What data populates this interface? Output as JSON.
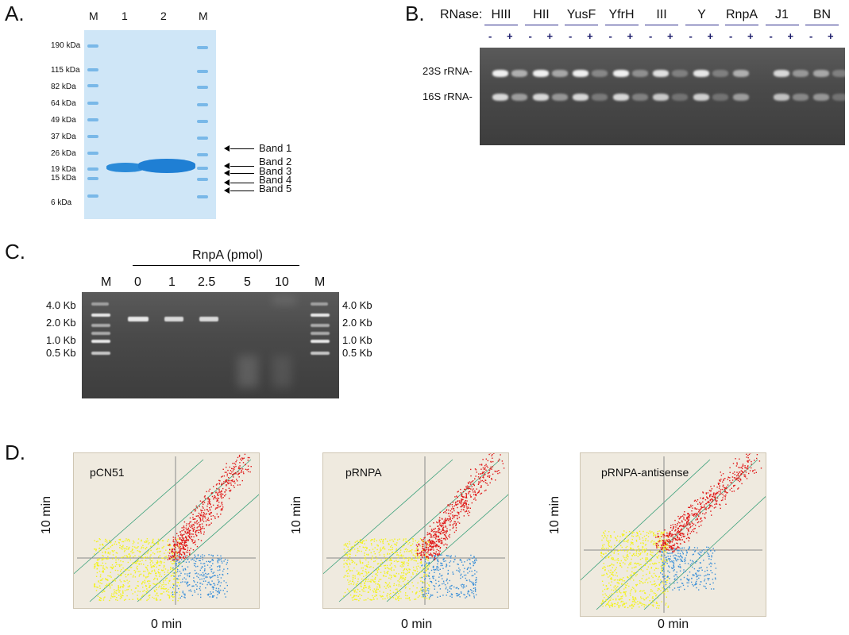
{
  "panels": {
    "a": "A.",
    "b": "B.",
    "c": "C.",
    "d": "D."
  },
  "panel_a": {
    "lanes": [
      "M",
      "1",
      "2",
      "M"
    ],
    "markers": [
      "190 kDa",
      "115 kDa",
      "82 kDa",
      "64 kDa",
      "49 kDa",
      "37 kDa",
      "26 kDa",
      "19 kDa",
      "15 kDa",
      "6 kDa"
    ],
    "bands": [
      "Band 1",
      "Band 2",
      "Band 3",
      "Band 4",
      "Band 5"
    ],
    "colors": {
      "gel": "#cfe6f7",
      "protein_band": "#1f86d6"
    }
  },
  "panel_b": {
    "prefix": "RNase:",
    "enzymes": [
      "HIII",
      "HII",
      "YusF",
      "YfrH",
      "III",
      "Y",
      "RnpA",
      "J1",
      "BN"
    ],
    "minus": "-",
    "plus": "+",
    "rows": [
      "23S rRNA-",
      "16S rRNA-"
    ]
  },
  "panel_c": {
    "header": "RnpA (pmol)",
    "lanes": [
      "M",
      "0",
      "1",
      "2.5",
      "5",
      "10",
      "M"
    ],
    "sizes_left": [
      "4.0 Kb",
      "2.0 Kb",
      "1.0 Kb",
      "0.5 Kb"
    ],
    "sizes_right": [
      "4.0 Kb",
      "2.0 Kb",
      "1.0 Kb",
      "0.5 Kb"
    ]
  },
  "panel_d": {
    "plots": [
      {
        "label": "pCN51",
        "ylabel": "10 min",
        "xlabel": "0 min"
      },
      {
        "label": "pRNPA",
        "ylabel": "10 min",
        "xlabel": "0 min"
      },
      {
        "label": "pRNPA-antisense",
        "ylabel": "10 min",
        "xlabel": "0 min"
      }
    ],
    "colors": {
      "red": "#e01818",
      "yellow": "#f2f21a",
      "blue": "#3a8fd8",
      "guide": "#3aa07a",
      "bg": "#efeadf"
    }
  }
}
